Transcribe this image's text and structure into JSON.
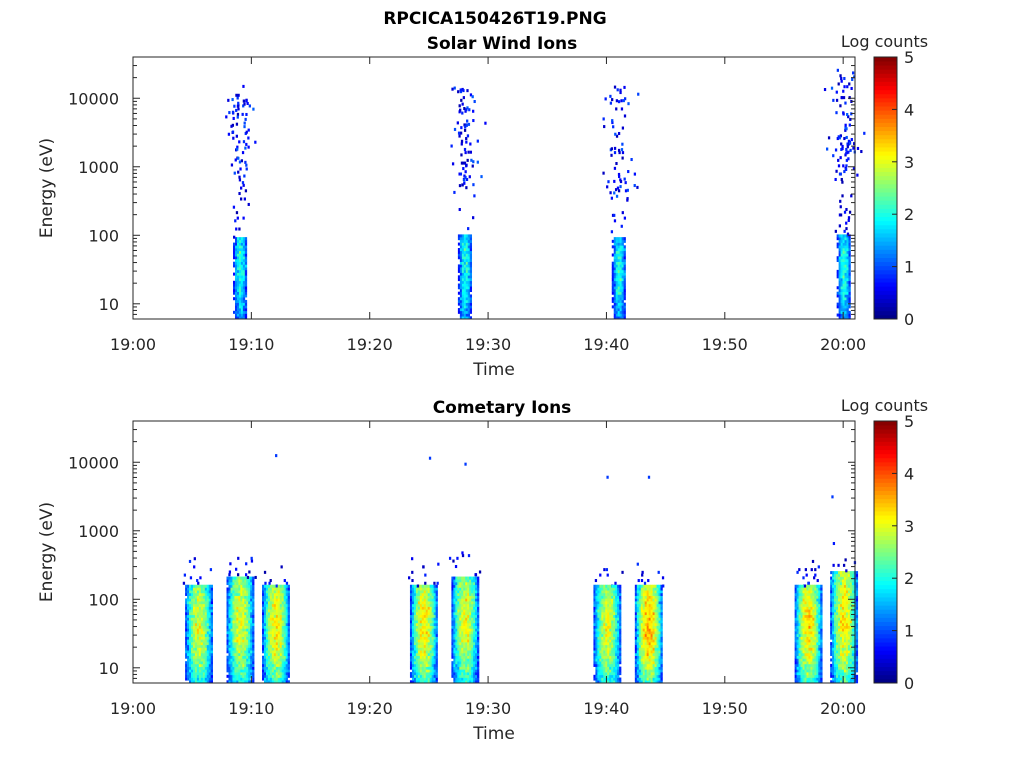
{
  "title": "RPCICA150426T19.PNG",
  "chart_data": [
    {
      "type": "heatmap",
      "title": "Solar Wind Ions",
      "xlabel": "Time",
      "ylabel": "Energy (eV)",
      "xlim_minutes_after_19": [
        0,
        61
      ],
      "x_ticks": [
        "19:00",
        "19:10",
        "19:20",
        "19:30",
        "19:40",
        "19:50",
        "20:00"
      ],
      "ylim": [
        6,
        40000
      ],
      "y_scale": "log",
      "y_ticks": [
        "10",
        "100",
        "1000",
        "10000"
      ],
      "colorbar": {
        "label": "Log counts",
        "min": 0,
        "max": 5,
        "ticks": [
          "0",
          "1",
          "2",
          "3",
          "4",
          "5"
        ],
        "colormap": "jet"
      },
      "bursts": [
        {
          "time": "19:09",
          "core_energy_eV": [
            6,
            90
          ],
          "peak_log_counts": 2.0,
          "scatter_energy_eV": [
            700,
            15000
          ]
        },
        {
          "time": "19:28",
          "core_energy_eV": [
            6,
            100
          ],
          "peak_log_counts": 2.0,
          "scatter_energy_eV": [
            400,
            14000
          ]
        },
        {
          "time": "19:41",
          "core_energy_eV": [
            6,
            90
          ],
          "peak_log_counts": 2.0,
          "scatter_energy_eV": [
            300,
            14000
          ]
        },
        {
          "time": "20:00",
          "core_energy_eV": [
            6,
            100
          ],
          "peak_log_counts": 2.0,
          "scatter_energy_eV": [
            700,
            25000
          ]
        }
      ]
    },
    {
      "type": "heatmap",
      "title": "Cometary Ions",
      "xlabel": "Time",
      "ylabel": "Energy (eV)",
      "xlim_minutes_after_19": [
        0,
        61
      ],
      "x_ticks": [
        "19:00",
        "19:10",
        "19:20",
        "19:30",
        "19:40",
        "19:50",
        "20:00"
      ],
      "ylim": [
        6,
        40000
      ],
      "y_scale": "log",
      "y_ticks": [
        "10",
        "100",
        "1000",
        "10000"
      ],
      "colorbar": {
        "label": "Log counts",
        "min": 0,
        "max": 5,
        "ticks": [
          "0",
          "1",
          "2",
          "3",
          "4",
          "5"
        ],
        "colormap": "jet"
      },
      "bursts": [
        {
          "time": "19:05.5",
          "core_energy_eV": [
            6,
            150
          ],
          "peak_log_counts": 3.0
        },
        {
          "time": "19:09",
          "core_energy_eV": [
            6,
            200
          ],
          "peak_log_counts": 3.0
        },
        {
          "time": "19:12",
          "core_energy_eV": [
            6,
            150
          ],
          "peak_log_counts": 3.2
        },
        {
          "time": "19:24.5",
          "core_energy_eV": [
            6,
            150
          ],
          "peak_log_counts": 3.2
        },
        {
          "time": "19:28",
          "core_energy_eV": [
            6,
            200
          ],
          "peak_log_counts": 3.0
        },
        {
          "time": "19:40",
          "core_energy_eV": [
            6,
            150
          ],
          "peak_log_counts": 3.0
        },
        {
          "time": "19:43.5",
          "core_energy_eV": [
            6,
            150
          ],
          "peak_log_counts": 3.5
        },
        {
          "time": "19:57",
          "core_energy_eV": [
            6,
            150
          ],
          "peak_log_counts": 3.3
        },
        {
          "time": "20:00",
          "core_energy_eV": [
            6,
            250
          ],
          "peak_log_counts": 3.2
        }
      ],
      "isolated_points": [
        {
          "time": "19:12",
          "energy_eV": 12000
        },
        {
          "time": "19:25",
          "energy_eV": 11000
        },
        {
          "time": "19:28",
          "energy_eV": 9000
        },
        {
          "time": "19:40",
          "energy_eV": 5800
        },
        {
          "time": "19:43.5",
          "energy_eV": 5800
        },
        {
          "time": "19:59",
          "energy_eV": 3000
        }
      ]
    }
  ]
}
